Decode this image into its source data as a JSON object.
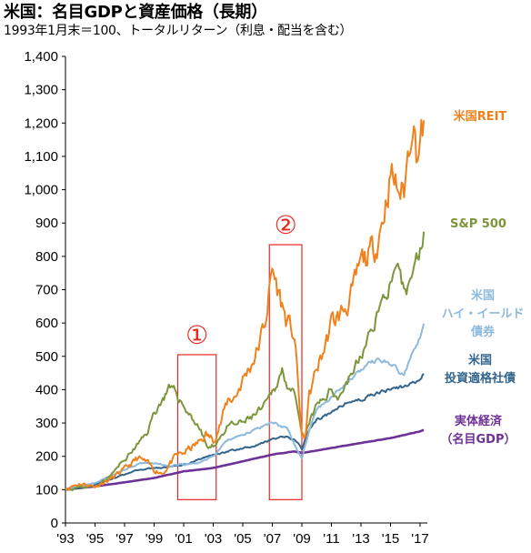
{
  "header": {
    "title": "米国：名目GDPと資産価格（長期）",
    "subtitle": "1993年1月末＝100、トータルリターン（利息・配当を含む）"
  },
  "colors": {
    "reit": "#f0821e",
    "sp500": "#7d963c",
    "hy": "#8cb9dc",
    "ig": "#32648c",
    "gdp": "#6e3296",
    "highlight": "#e8281e"
  },
  "chart_data": {
    "type": "line",
    "title": "米国：名目GDPと資産価格（長期）",
    "subtitle": "1993年1月末＝100、トータルリターン（利息・配当を含む）",
    "xlim": [
      1993.0,
      2017.0
    ],
    "ylim": [
      0,
      1400
    ],
    "yticks": [
      0,
      100,
      200,
      300,
      400,
      500,
      600,
      700,
      800,
      900,
      1000,
      1100,
      1200,
      1300,
      1400
    ],
    "ytick_labels": [
      "0",
      "100",
      "200",
      "300",
      "400",
      "500",
      "600",
      "700",
      "800",
      "900",
      "1,000",
      "1,100",
      "1,200",
      "1,300",
      "1,400"
    ],
    "xticks": [
      1993,
      1995,
      1997,
      1999,
      2001,
      2003,
      2005,
      2007,
      2009,
      2011,
      2013,
      2015,
      2017
    ],
    "xtick_labels": [
      "'93",
      "'95",
      "'97",
      "'99",
      "'01",
      "'03",
      "'05",
      "'07",
      "'09",
      "'11",
      "'13",
      "'15",
      "'17"
    ],
    "grid": false,
    "legend": "labels at right end of each series",
    "series": [
      {
        "name": "米国REIT",
        "key": "reit",
        "lines": [
          "米国REIT"
        ],
        "points": [
          [
            1993,
            100
          ],
          [
            1993.5,
            112
          ],
          [
            1994,
            118
          ],
          [
            1995,
            110
          ],
          [
            1996,
            130
          ],
          [
            1997,
            160
          ],
          [
            1997.9,
            195
          ],
          [
            1998.5,
            180
          ],
          [
            1999,
            160
          ],
          [
            1999.6,
            150
          ],
          [
            2000,
            175
          ],
          [
            2000.5,
            200
          ],
          [
            2001,
            210
          ],
          [
            2001.5,
            225
          ],
          [
            2002,
            240
          ],
          [
            2002.5,
            265
          ],
          [
            2003,
            250
          ],
          [
            2003.5,
            300
          ],
          [
            2004,
            370
          ],
          [
            2004.5,
            380
          ],
          [
            2005,
            430
          ],
          [
            2005.5,
            470
          ],
          [
            2006,
            520
          ],
          [
            2006.5,
            600
          ],
          [
            2007,
            760
          ],
          [
            2007.5,
            680
          ],
          [
            2008,
            600
          ],
          [
            2008.5,
            560
          ],
          [
            2009,
            260
          ],
          [
            2009.2,
            250
          ],
          [
            2009.5,
            380
          ],
          [
            2010,
            460
          ],
          [
            2010.5,
            520
          ],
          [
            2011,
            600
          ],
          [
            2011.5,
            620
          ],
          [
            2012,
            650
          ],
          [
            2012.5,
            700
          ],
          [
            2013,
            780
          ],
          [
            2013.5,
            800
          ],
          [
            2014,
            830
          ],
          [
            2014.5,
            920
          ],
          [
            2015,
            1050
          ],
          [
            2015.5,
            1000
          ],
          [
            2015.9,
            990
          ],
          [
            2016.3,
            1150
          ],
          [
            2016.5,
            1240
          ],
          [
            2016.8,
            1100
          ],
          [
            2017,
            1150
          ],
          [
            2017.3,
            1200
          ]
        ]
      },
      {
        "name": "S&P 500",
        "key": "sp500",
        "lines": [
          "S&P 500"
        ],
        "points": [
          [
            1993,
            100
          ],
          [
            1994,
            108
          ],
          [
            1995,
            110
          ],
          [
            1996,
            140
          ],
          [
            1997,
            190
          ],
          [
            1998,
            240
          ],
          [
            1998.5,
            270
          ],
          [
            1999,
            330
          ],
          [
            1999.7,
            380
          ],
          [
            2000,
            400
          ],
          [
            2000.5,
            390
          ],
          [
            2001,
            350
          ],
          [
            2001.5,
            320
          ],
          [
            2002,
            290
          ],
          [
            2002.7,
            220
          ],
          [
            2003,
            230
          ],
          [
            2003.5,
            260
          ],
          [
            2004,
            290
          ],
          [
            2005,
            300
          ],
          [
            2006,
            330
          ],
          [
            2006.5,
            350
          ],
          [
            2007,
            390
          ],
          [
            2007.7,
            460
          ],
          [
            2008,
            420
          ],
          [
            2008.5,
            380
          ],
          [
            2009,
            260
          ],
          [
            2009.2,
            250
          ],
          [
            2009.5,
            300
          ],
          [
            2010,
            350
          ],
          [
            2011,
            400
          ],
          [
            2011.5,
            380
          ],
          [
            2012,
            420
          ],
          [
            2013,
            500
          ],
          [
            2013.5,
            550
          ],
          [
            2014,
            620
          ],
          [
            2014.5,
            670
          ],
          [
            2015,
            720
          ],
          [
            2015.5,
            740
          ],
          [
            2016,
            680
          ],
          [
            2016.5,
            760
          ],
          [
            2017,
            820
          ],
          [
            2017.3,
            900
          ]
        ]
      },
      {
        "name": "米国ハイ・イールド債券",
        "key": "hy",
        "lines": [
          "米国",
          "ハイ・イールド",
          "債券"
        ],
        "points": [
          [
            1993,
            100
          ],
          [
            1994,
            112
          ],
          [
            1995,
            120
          ],
          [
            1996,
            140
          ],
          [
            1997,
            160
          ],
          [
            1998,
            180
          ],
          [
            1999,
            180
          ],
          [
            2000,
            170
          ],
          [
            2001,
            175
          ],
          [
            2002,
            180
          ],
          [
            2003,
            200
          ],
          [
            2004,
            250
          ],
          [
            2005,
            265
          ],
          [
            2006,
            285
          ],
          [
            2007,
            305
          ],
          [
            2008,
            280
          ],
          [
            2008.9,
            200
          ],
          [
            2009,
            195
          ],
          [
            2009.5,
            280
          ],
          [
            2010,
            340
          ],
          [
            2011,
            380
          ],
          [
            2012,
            420
          ],
          [
            2013,
            460
          ],
          [
            2014,
            490
          ],
          [
            2015,
            480
          ],
          [
            2015.9,
            440
          ],
          [
            2016.5,
            520
          ],
          [
            2017,
            560
          ],
          [
            2017.3,
            600
          ]
        ]
      },
      {
        "name": "米国投資適格社債",
        "key": "ig",
        "lines": [
          "米国",
          "投資適格社債"
        ],
        "points": [
          [
            1993,
            100
          ],
          [
            1994,
            105
          ],
          [
            1995,
            115
          ],
          [
            1996,
            130
          ],
          [
            1997,
            145
          ],
          [
            1998,
            160
          ],
          [
            1999,
            165
          ],
          [
            2000,
            168
          ],
          [
            2001,
            175
          ],
          [
            2002,
            190
          ],
          [
            2003,
            205
          ],
          [
            2004,
            215
          ],
          [
            2005,
            225
          ],
          [
            2006,
            235
          ],
          [
            2007,
            250
          ],
          [
            2008,
            260
          ],
          [
            2008.8,
            240
          ],
          [
            2009,
            220
          ],
          [
            2009.5,
            280
          ],
          [
            2010,
            310
          ],
          [
            2011,
            330
          ],
          [
            2012,
            360
          ],
          [
            2013,
            370
          ],
          [
            2014,
            390
          ],
          [
            2015,
            400
          ],
          [
            2016,
            410
          ],
          [
            2017,
            430
          ],
          [
            2017.3,
            450
          ]
        ]
      },
      {
        "name": "実体経済（名目GDP）",
        "key": "gdp",
        "lines": [
          "実体経済",
          "（名目GDP）"
        ],
        "points": [
          [
            1993,
            100
          ],
          [
            1995,
            110
          ],
          [
            1997,
            122
          ],
          [
            1999,
            135
          ],
          [
            2001,
            155
          ],
          [
            2003,
            165
          ],
          [
            2005,
            185
          ],
          [
            2007,
            205
          ],
          [
            2008.5,
            215
          ],
          [
            2009,
            210
          ],
          [
            2011,
            225
          ],
          [
            2013,
            240
          ],
          [
            2015,
            255
          ],
          [
            2017,
            275
          ],
          [
            2017.3,
            280
          ]
        ]
      }
    ],
    "annotations": [
      {
        "label": "①",
        "x0": 2000.6,
        "x1": 2003.2,
        "y0": 70,
        "y1": 505
      },
      {
        "label": "②",
        "x0": 2006.8,
        "x1": 2009.0,
        "y0": 70,
        "y1": 835
      }
    ]
  }
}
